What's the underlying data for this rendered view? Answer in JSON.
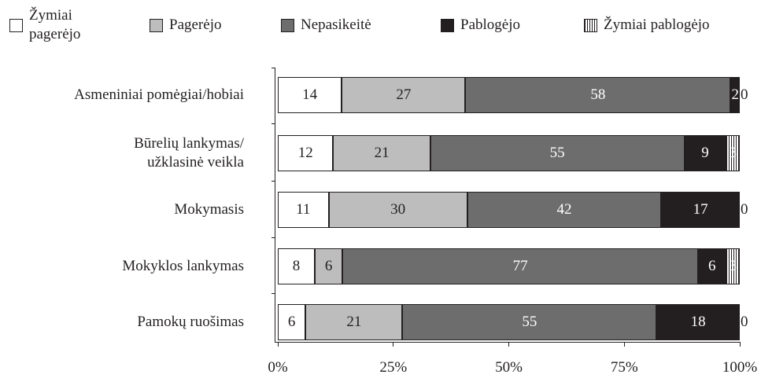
{
  "chart_data": {
    "type": "stacked-bar-100",
    "orientation": "horizontal",
    "categories": [
      "Asmeniniai pomėgiai/hobiai",
      "Būrelių lankymas/\nužklasinė veikla",
      "Mokymasis",
      "Mokyklos lankymas",
      "Pamokų ruošimas"
    ],
    "series": [
      {
        "name": "Žymiai\npagerėjo",
        "color": "#ffffff",
        "values": [
          14,
          12,
          11,
          8,
          6
        ]
      },
      {
        "name": "Pagerėjo",
        "color": "#bdbdbd",
        "values": [
          27,
          21,
          30,
          6,
          21
        ]
      },
      {
        "name": "Nepasikeitė",
        "color": "#6d6d6d",
        "values": [
          58,
          55,
          42,
          77,
          55
        ]
      },
      {
        "name": "Pablogėjo",
        "color": "#231f20",
        "values": [
          2,
          9,
          17,
          6,
          18
        ]
      },
      {
        "name": "Žymiai pablogėjo",
        "color": "#231f20",
        "pattern": "vertical-lines",
        "values": [
          0,
          3,
          0,
          3,
          0
        ]
      }
    ],
    "xlim": [
      0,
      100
    ],
    "xticks": [
      {
        "value": 0,
        "label": "0%"
      },
      {
        "value": 25,
        "label": "25%"
      },
      {
        "value": 50,
        "label": "50%"
      },
      {
        "value": 75,
        "label": "75%"
      },
      {
        "value": 100,
        "label": "100%"
      }
    ],
    "legend": "top"
  }
}
